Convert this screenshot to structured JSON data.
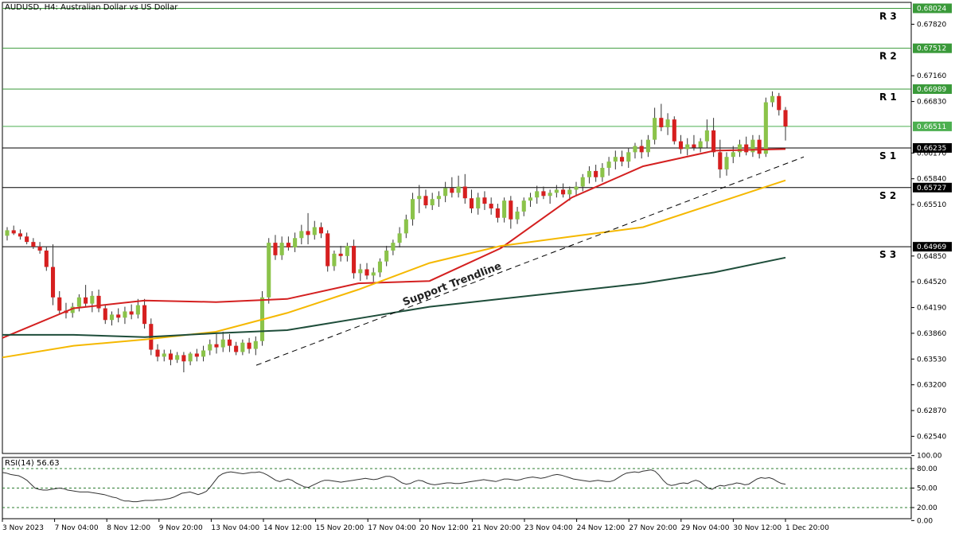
{
  "chart_data": {
    "type": "candlestick",
    "title": "AUDUSD, H4:  Australian Dollar vs US Dollar",
    "price_axis": {
      "ylim": [
        0.6232,
        0.681
      ],
      "ticks": [
        "0.67820",
        "0.67160",
        "0.66830",
        "0.66170",
        "0.65840",
        "0.65510",
        "0.64850",
        "0.64520",
        "0.64190",
        "0.63860",
        "0.63530",
        "0.63200",
        "0.62870",
        "0.62540"
      ]
    },
    "time_axis": {
      "ticks": [
        "3 Nov 2023",
        "7 Nov 04:00",
        "8 Nov 12:00",
        "9 Nov 20:00",
        "13 Nov 04:00",
        "14 Nov 12:00",
        "15 Nov 20:00",
        "17 Nov 04:00",
        "20 Nov 12:00",
        "21 Nov 20:00",
        "23 Nov 04:00",
        "24 Nov 12:00",
        "27 Nov 20:00",
        "29 Nov 04:00",
        "30 Nov 12:00",
        "1 Dec 20:00"
      ]
    },
    "levels": [
      {
        "name": "R 3",
        "value": "0.68024",
        "color": "#3a9a3a",
        "tag_bg": "#3a9a3a",
        "tag_fg": "#ffffff"
      },
      {
        "name": "R 2",
        "value": "0.67512",
        "color": "#3a9a3a",
        "tag_bg": "#3a9a3a",
        "tag_fg": "#ffffff"
      },
      {
        "name": "R 1",
        "value": "0.66989",
        "color": "#3a9a3a",
        "tag_bg": "#3a9a3a",
        "tag_fg": "#ffffff"
      },
      {
        "name": "",
        "value": "0.66511",
        "color": "#4caf50",
        "tag_bg": "#4caf50",
        "tag_fg": "#ffffff"
      },
      {
        "name": "S 1",
        "value": "0.66235",
        "color": "#000000",
        "tag_bg": "#000000",
        "tag_fg": "#ffffff"
      },
      {
        "name": "S 2",
        "value": "0.65727",
        "color": "#000000",
        "tag_bg": "#000000",
        "tag_fg": "#ffffff"
      },
      {
        "name": "S 3",
        "value": "0.64969",
        "color": "#000000",
        "tag_bg": "#000000",
        "tag_fg": "#ffffff"
      }
    ],
    "candles": [
      [
        0.6511,
        0.6522,
        0.6505,
        0.6518
      ],
      [
        0.6518,
        0.6524,
        0.6512,
        0.6514
      ],
      [
        0.6514,
        0.6519,
        0.6506,
        0.651
      ],
      [
        0.651,
        0.6515,
        0.65,
        0.6503
      ],
      [
        0.6503,
        0.6508,
        0.6494,
        0.6497
      ],
      [
        0.6497,
        0.6503,
        0.6488,
        0.6492
      ],
      [
        0.6492,
        0.6497,
        0.6466,
        0.6471
      ],
      [
        0.6471,
        0.65,
        0.6422,
        0.6432
      ],
      [
        0.6432,
        0.644,
        0.641,
        0.6415
      ],
      [
        0.6415,
        0.6425,
        0.6405,
        0.6412
      ],
      [
        0.6412,
        0.6425,
        0.6406,
        0.642
      ],
      [
        0.642,
        0.6436,
        0.6414,
        0.6432
      ],
      [
        0.6432,
        0.6448,
        0.642,
        0.6424
      ],
      [
        0.6424,
        0.644,
        0.6413,
        0.6434
      ],
      [
        0.6434,
        0.6442,
        0.6413,
        0.6418
      ],
      [
        0.6418,
        0.6423,
        0.6398,
        0.6403
      ],
      [
        0.6403,
        0.6414,
        0.6396,
        0.641
      ],
      [
        0.641,
        0.6418,
        0.64,
        0.6406
      ],
      [
        0.6406,
        0.642,
        0.6398,
        0.6414
      ],
      [
        0.6414,
        0.6423,
        0.6404,
        0.641
      ],
      [
        0.641,
        0.643,
        0.6405,
        0.6422
      ],
      [
        0.6422,
        0.643,
        0.6392,
        0.6398
      ],
      [
        0.6398,
        0.6405,
        0.6358,
        0.6365
      ],
      [
        0.6365,
        0.6372,
        0.635,
        0.6356
      ],
      [
        0.6356,
        0.6365,
        0.635,
        0.636
      ],
      [
        0.636,
        0.6365,
        0.6345,
        0.6352
      ],
      [
        0.6352,
        0.6362,
        0.6348,
        0.6358
      ],
      [
        0.6358,
        0.6362,
        0.6336,
        0.635
      ],
      [
        0.635,
        0.6362,
        0.6345,
        0.636
      ],
      [
        0.636,
        0.6366,
        0.635,
        0.6356
      ],
      [
        0.6356,
        0.637,
        0.635,
        0.6364
      ],
      [
        0.6364,
        0.6378,
        0.6358,
        0.6372
      ],
      [
        0.6372,
        0.6385,
        0.636,
        0.6368
      ],
      [
        0.6368,
        0.6388,
        0.6362,
        0.6378
      ],
      [
        0.6378,
        0.6385,
        0.6362,
        0.637
      ],
      [
        0.637,
        0.6375,
        0.6358,
        0.6362
      ],
      [
        0.6362,
        0.6378,
        0.6358,
        0.6374
      ],
      [
        0.6374,
        0.638,
        0.636,
        0.6366
      ],
      [
        0.6366,
        0.6382,
        0.6358,
        0.6376
      ],
      [
        0.6376,
        0.644,
        0.637,
        0.6432
      ],
      [
        0.6432,
        0.6508,
        0.6424,
        0.6502
      ],
      [
        0.6502,
        0.6512,
        0.648,
        0.6486
      ],
      [
        0.6486,
        0.651,
        0.648,
        0.6502
      ],
      [
        0.6502,
        0.651,
        0.6492,
        0.6496
      ],
      [
        0.6496,
        0.6515,
        0.649,
        0.6508
      ],
      [
        0.6508,
        0.6525,
        0.65,
        0.6517
      ],
      [
        0.6517,
        0.654,
        0.65,
        0.6512
      ],
      [
        0.6512,
        0.653,
        0.6506,
        0.6522
      ],
      [
        0.6522,
        0.6528,
        0.6508,
        0.6514
      ],
      [
        0.6514,
        0.6518,
        0.6465,
        0.6472
      ],
      [
        0.6472,
        0.6492,
        0.6466,
        0.6488
      ],
      [
        0.6488,
        0.6498,
        0.6478,
        0.6485
      ],
      [
        0.6485,
        0.6502,
        0.6478,
        0.6498
      ],
      [
        0.6498,
        0.6506,
        0.6456,
        0.6463
      ],
      [
        0.6463,
        0.6475,
        0.6453,
        0.6468
      ],
      [
        0.6468,
        0.6476,
        0.6455,
        0.646
      ],
      [
        0.646,
        0.647,
        0.6452,
        0.6464
      ],
      [
        0.6464,
        0.6482,
        0.6458,
        0.6478
      ],
      [
        0.6478,
        0.6498,
        0.6472,
        0.6492
      ],
      [
        0.6492,
        0.6506,
        0.6486,
        0.6502
      ],
      [
        0.6502,
        0.6522,
        0.6496,
        0.6514
      ],
      [
        0.6514,
        0.6538,
        0.6508,
        0.6532
      ],
      [
        0.6532,
        0.6566,
        0.6524,
        0.6558
      ],
      [
        0.6558,
        0.6576,
        0.654,
        0.6562
      ],
      [
        0.6562,
        0.657,
        0.6546,
        0.655
      ],
      [
        0.655,
        0.6566,
        0.6544,
        0.6558
      ],
      [
        0.6558,
        0.6568,
        0.6548,
        0.6562
      ],
      [
        0.6562,
        0.658,
        0.6554,
        0.6572
      ],
      [
        0.6572,
        0.6586,
        0.656,
        0.6566
      ],
      [
        0.6566,
        0.6588,
        0.656,
        0.6574
      ],
      [
        0.6574,
        0.659,
        0.6552,
        0.6559
      ],
      [
        0.6559,
        0.657,
        0.654,
        0.6546
      ],
      [
        0.6546,
        0.6566,
        0.6538,
        0.656
      ],
      [
        0.656,
        0.6568,
        0.6544,
        0.6552
      ],
      [
        0.6552,
        0.656,
        0.6538,
        0.6546
      ],
      [
        0.6546,
        0.6552,
        0.6528,
        0.6534
      ],
      [
        0.6534,
        0.656,
        0.6528,
        0.6556
      ],
      [
        0.6556,
        0.6562,
        0.652,
        0.6532
      ],
      [
        0.6532,
        0.6548,
        0.6526,
        0.6542
      ],
      [
        0.6542,
        0.656,
        0.6536,
        0.6556
      ],
      [
        0.6556,
        0.6566,
        0.6548,
        0.656
      ],
      [
        0.656,
        0.6575,
        0.6552,
        0.6568
      ],
      [
        0.6568,
        0.6574,
        0.6558,
        0.6562
      ],
      [
        0.6562,
        0.657,
        0.6552,
        0.6566
      ],
      [
        0.6566,
        0.6576,
        0.656,
        0.657
      ],
      [
        0.657,
        0.6578,
        0.656,
        0.6564
      ],
      [
        0.6564,
        0.6574,
        0.6556,
        0.657
      ],
      [
        0.657,
        0.658,
        0.6562,
        0.6574
      ],
      [
        0.6574,
        0.659,
        0.6568,
        0.6586
      ],
      [
        0.6586,
        0.66,
        0.6578,
        0.6594
      ],
      [
        0.6594,
        0.6602,
        0.658,
        0.6586
      ],
      [
        0.6586,
        0.6604,
        0.658,
        0.6598
      ],
      [
        0.6598,
        0.6612,
        0.6588,
        0.6606
      ],
      [
        0.6606,
        0.662,
        0.6596,
        0.6612
      ],
      [
        0.6612,
        0.662,
        0.66,
        0.6606
      ],
      [
        0.6606,
        0.6624,
        0.6598,
        0.6618
      ],
      [
        0.6618,
        0.663,
        0.661,
        0.6626
      ],
      [
        0.6626,
        0.6634,
        0.661,
        0.6618
      ],
      [
        0.6618,
        0.664,
        0.6612,
        0.6634
      ],
      [
        0.6634,
        0.6675,
        0.6628,
        0.6662
      ],
      [
        0.6662,
        0.668,
        0.6645,
        0.665
      ],
      [
        0.665,
        0.6668,
        0.664,
        0.666
      ],
      [
        0.666,
        0.6664,
        0.6628,
        0.6632
      ],
      [
        0.6632,
        0.664,
        0.6616,
        0.6622
      ],
      [
        0.6622,
        0.6636,
        0.6614,
        0.6628
      ],
      [
        0.6628,
        0.664,
        0.662,
        0.6624
      ],
      [
        0.6624,
        0.6636,
        0.6618,
        0.6632
      ],
      [
        0.6632,
        0.666,
        0.6624,
        0.6646
      ],
      [
        0.6646,
        0.6662,
        0.6612,
        0.6618
      ],
      [
        0.6618,
        0.6634,
        0.6585,
        0.6596
      ],
      [
        0.6596,
        0.6618,
        0.6588,
        0.6612
      ],
      [
        0.6612,
        0.6626,
        0.6604,
        0.6618
      ],
      [
        0.6618,
        0.6634,
        0.6612,
        0.6628
      ],
      [
        0.6628,
        0.6638,
        0.6614,
        0.6618
      ],
      [
        0.6618,
        0.664,
        0.6612,
        0.6634
      ],
      [
        0.6634,
        0.664,
        0.661,
        0.6616
      ],
      [
        0.6616,
        0.6688,
        0.6612,
        0.6682
      ],
      [
        0.6682,
        0.6696,
        0.6676,
        0.669
      ],
      [
        0.669,
        0.6694,
        0.6665,
        0.6672
      ],
      [
        0.6672,
        0.6676,
        0.6633,
        0.6651
      ]
    ],
    "ma_series": [
      {
        "color": "#d42020",
        "values": [
          0.638,
          0.6418,
          0.6428,
          0.6426,
          0.643,
          0.645,
          0.6453,
          0.6495,
          0.656,
          0.66,
          0.662,
          0.6622
        ]
      },
      {
        "color": "#f5b800",
        "values": [
          0.6355,
          0.637,
          0.6378,
          0.6388,
          0.6412,
          0.6442,
          0.6476,
          0.6498,
          0.651,
          0.6522,
          0.6552,
          0.6582
        ]
      },
      {
        "color": "#1e4d3a",
        "values": [
          0.6384,
          0.6384,
          0.6381,
          0.6386,
          0.639,
          0.6405,
          0.642,
          0.643,
          0.644,
          0.645,
          0.6464,
          0.6483
        ]
      }
    ],
    "trendline": {
      "label": "Support Trendline",
      "from": [
        0.6345
      ],
      "to": [
        0.6612
      ]
    },
    "rsi": {
      "label": "RSI(14) 56.63",
      "ticks": [
        "100.00",
        "80.00",
        "50.00",
        "20.00",
        "0.00"
      ],
      "levels": [
        80,
        50,
        20
      ],
      "values": [
        74,
        73,
        71,
        70,
        69,
        66,
        62,
        56,
        50,
        48,
        47,
        47,
        48,
        49,
        50,
        49,
        47,
        46,
        45,
        44,
        44,
        44,
        43,
        42,
        41,
        40,
        38,
        36,
        35,
        32,
        30,
        30,
        29,
        29,
        30,
        31,
        31,
        31,
        32,
        32,
        33,
        34,
        36,
        39,
        42,
        43,
        44,
        42,
        40,
        42,
        45,
        52,
        60,
        68,
        72,
        74,
        75,
        74,
        73,
        72,
        73,
        74,
        74,
        75,
        73,
        70,
        66,
        62,
        60,
        62,
        64,
        62,
        58,
        55,
        52,
        51,
        54,
        57,
        60,
        62,
        62,
        61,
        60,
        59,
        60,
        61,
        62,
        63,
        64,
        65,
        64,
        63,
        64,
        66,
        68,
        68,
        66,
        62,
        58,
        56,
        57,
        60,
        62,
        61,
        58,
        56,
        55,
        56,
        57,
        58,
        58,
        57,
        57,
        58,
        59,
        60,
        61,
        62,
        63,
        62,
        61,
        60,
        62,
        64,
        64,
        63,
        62,
        63,
        65,
        66,
        67,
        66,
        65,
        66,
        68,
        70,
        71,
        70,
        68,
        66,
        64,
        63,
        62,
        61,
        60,
        61,
        62,
        61,
        60,
        60,
        62,
        66,
        70,
        73,
        74,
        75,
        74,
        76,
        77,
        78,
        76,
        70,
        62,
        56,
        54,
        55,
        57,
        58,
        57,
        60,
        62,
        60,
        55,
        50,
        48,
        52,
        54,
        53,
        55,
        56,
        58,
        57,
        55,
        56,
        60,
        64,
        66,
        65,
        66,
        64,
        60,
        57,
        56
      ]
    }
  }
}
